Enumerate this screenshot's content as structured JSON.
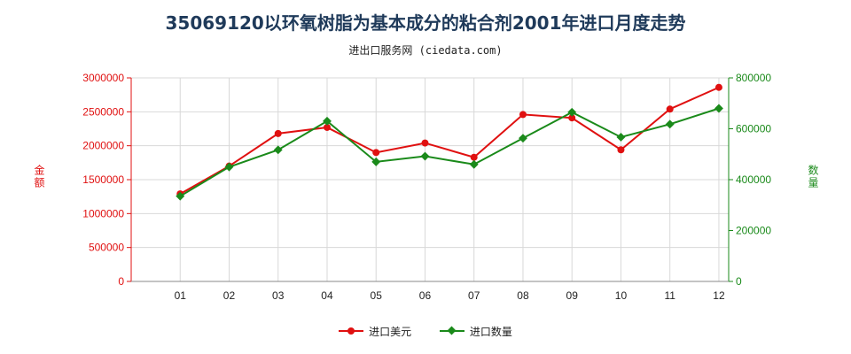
{
  "title": "35069120以环氧树脂为基本成分的粘合剂2001年进口月度走势",
  "subtitle": "进出口服务网 (ciedata.com)",
  "colors": {
    "series1": "#e01010",
    "series2": "#1a8a1a",
    "grid": "#d8d8d8"
  },
  "chart_data": {
    "type": "line",
    "categories": [
      "01",
      "02",
      "03",
      "04",
      "05",
      "06",
      "07",
      "08",
      "09",
      "10",
      "11",
      "12"
    ],
    "ylabel_left": "金额",
    "ylabel_right": "数量",
    "ylim_left": [
      0,
      3000000
    ],
    "ylim_right": [
      0,
      800000
    ],
    "yticks_left": [
      "0",
      "500000",
      "1000000",
      "1500000",
      "2000000",
      "2500000",
      "3000000"
    ],
    "yticks_right": [
      "0",
      "200000",
      "400000",
      "600000",
      "800000"
    ],
    "grid": true,
    "legend_position": "bottom-center",
    "series": [
      {
        "name": "进口美元",
        "axis": "left",
        "marker": "circle",
        "values": [
          1290000,
          1700000,
          2180000,
          2270000,
          1900000,
          2040000,
          1830000,
          2460000,
          2410000,
          1940000,
          2540000,
          2860000
        ]
      },
      {
        "name": "进口数量",
        "axis": "right",
        "marker": "diamond",
        "values": [
          335000,
          450000,
          517000,
          630000,
          470000,
          492000,
          460000,
          563000,
          665000,
          567000,
          618000,
          680000
        ]
      }
    ]
  }
}
